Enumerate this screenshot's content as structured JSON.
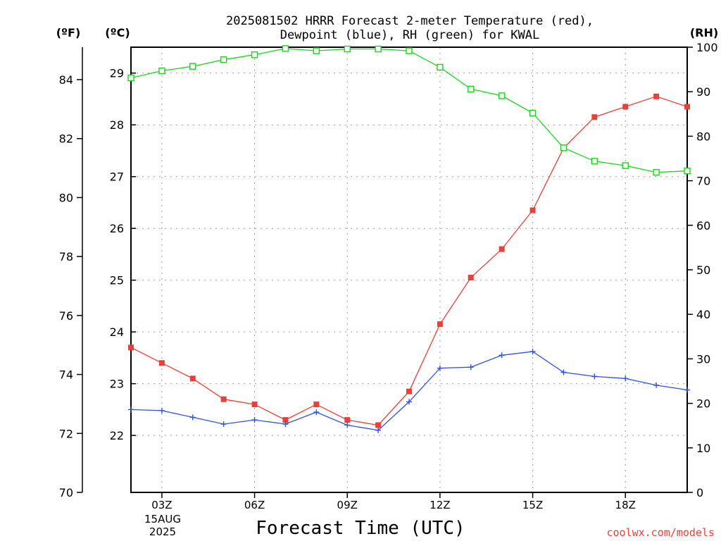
{
  "chart_data": {
    "type": "line",
    "title": "2025081502 HRRR Forecast 2-meter Temperature (red),",
    "subtitle": "Dewpoint (blue), RH (green) for KWAL",
    "xlabel": "Forecast Time (UTC)",
    "credit": "coolwx.com/models",
    "unit_f": "(ºF)",
    "unit_c": "(ºC)",
    "unit_rh": "(RH)",
    "x_hours": [
      2,
      3,
      4,
      5,
      6,
      7,
      8,
      9,
      10,
      11,
      12,
      13,
      14,
      15,
      16,
      17,
      18,
      19,
      20
    ],
    "xlim": [
      2,
      20
    ],
    "x_ticks": [
      {
        "hour": 3,
        "label": "03Z"
      },
      {
        "hour": 6,
        "label": "06Z"
      },
      {
        "hour": 9,
        "label": "09Z"
      },
      {
        "hour": 12,
        "label": "12Z"
      },
      {
        "hour": 15,
        "label": "15Z"
      },
      {
        "hour": 18,
        "label": "18Z"
      }
    ],
    "date_line1": "15AUG",
    "date_line2": "2025",
    "ylim_celsius": [
      20.9,
      29.5
    ],
    "ylim_fahrenheit": [
      70,
      85.1
    ],
    "ylim_rh": [
      0,
      100
    ],
    "celsius_ticks": [
      "22",
      "23",
      "24",
      "25",
      "26",
      "27",
      "28",
      "29"
    ],
    "fahrenheit_ticks": [
      "70",
      "72",
      "74",
      "76",
      "78",
      "80",
      "82",
      "84"
    ],
    "rh_ticks": [
      "0",
      "10",
      "20",
      "30",
      "40",
      "50",
      "60",
      "70",
      "80",
      "90",
      "100"
    ],
    "grid": true,
    "series": [
      {
        "name": "Temperature",
        "axis": "celsius",
        "color": "#e8403a",
        "marker": "filled-square",
        "values": [
          23.7,
          23.4,
          23.1,
          22.7,
          22.6,
          22.3,
          22.6,
          22.3,
          22.2,
          22.85,
          24.15,
          25.05,
          25.6,
          26.35,
          27.55,
          28.15,
          28.35,
          28.55,
          28.35
        ]
      },
      {
        "name": "Dewpoint",
        "axis": "celsius",
        "color": "#3050e0",
        "marker": "plus",
        "values": [
          22.5,
          22.48,
          22.35,
          22.22,
          22.3,
          22.22,
          22.45,
          22.2,
          22.1,
          22.65,
          23.3,
          23.32,
          23.55,
          23.62,
          23.22,
          23.14,
          23.1,
          22.97,
          22.88
        ]
      },
      {
        "name": "RH",
        "axis": "rh",
        "color": "#20d020",
        "marker": "open-square",
        "values": [
          93.1,
          94.7,
          95.7,
          97.2,
          98.3,
          99.7,
          99.2,
          99.6,
          99.6,
          99.2,
          95.5,
          90.6,
          89.1,
          85.2,
          77.4,
          74.4,
          73.4,
          71.9,
          72.2
        ]
      }
    ]
  }
}
